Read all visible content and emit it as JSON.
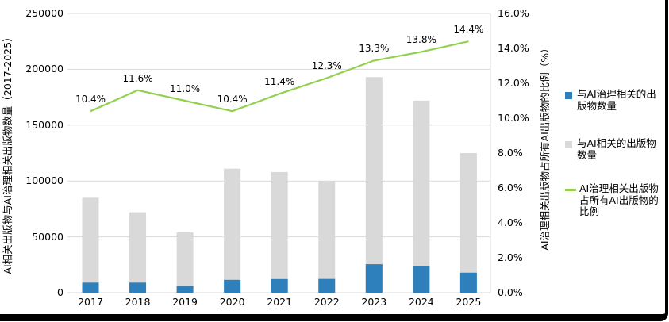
{
  "chart_data": {
    "type": "combo",
    "categories": [
      "2017",
      "2018",
      "2019",
      "2020",
      "2021",
      "2022",
      "2023",
      "2024",
      "2025"
    ],
    "series": [
      {
        "name": "与AI治理相关的出版物数量",
        "type": "bar",
        "axis": "left",
        "color": "#2E80BD",
        "values": [
          9000,
          9000,
          6000,
          11500,
          12200,
          12300,
          25500,
          23700,
          17900
        ]
      },
      {
        "name": "与AI相关的出版物数量",
        "type": "bar",
        "axis": "left",
        "color": "#D9D9D9",
        "values": [
          85000,
          72000,
          54000,
          111000,
          108000,
          100000,
          193000,
          172000,
          125000
        ]
      },
      {
        "name": "AI治理相关出版物占所有AI出版物的比例",
        "type": "line",
        "axis": "right",
        "color": "#92D050",
        "values": [
          10.4,
          11.6,
          11.0,
          10.4,
          11.4,
          12.3,
          13.3,
          13.8,
          14.4
        ],
        "data_labels": [
          "10.4%",
          "11.6%",
          "11.0%",
          "10.4%",
          "11.4%",
          "12.3%",
          "13.3%",
          "13.8%",
          "14.4%"
        ]
      }
    ],
    "left_axis": {
      "title": "AI相关出版物与AI治理相关出版物数量（2017-2025）",
      "min": 0,
      "max": 250000,
      "step": 50000,
      "tick_labels": [
        "0",
        "50000",
        "100000",
        "150000",
        "200000",
        "250000"
      ]
    },
    "right_axis": {
      "title": "AI治理相关出版物占所有AI出版物的比例（%）",
      "min": 0,
      "max": 16,
      "step": 2,
      "tick_labels": [
        "0.0%",
        "2.0%",
        "4.0%",
        "6.0%",
        "8.0%",
        "10.0%",
        "12.0%",
        "14.0%",
        "16.0%"
      ]
    },
    "grid": "horizontal",
    "legend_position": "right"
  },
  "legend": {
    "items": [
      {
        "swatch": "square",
        "color": "#2E80BD",
        "lines": [
          "与AI治理相关的出",
          "版物数量"
        ]
      },
      {
        "swatch": "square",
        "color": "#D9D9D9",
        "lines": [
          "与AI相关的出版物",
          "数量"
        ]
      },
      {
        "swatch": "line",
        "color": "#92D050",
        "lines": [
          "AI治理相关出版物",
          "占所有AI出版物的",
          "比例"
        ]
      }
    ]
  },
  "colors": {
    "bar_governance": "#2E80BD",
    "bar_all_ai": "#D9D9D9",
    "line_ratio": "#92D050",
    "gridline": "#D9D9D9",
    "text": "#000000",
    "frame": "#000000"
  }
}
